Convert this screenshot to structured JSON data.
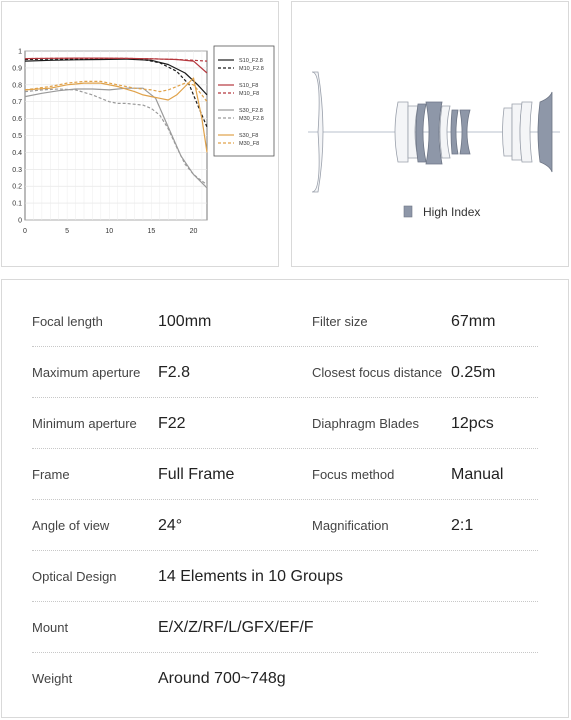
{
  "mtf_chart": {
    "chart_data": {
      "type": "line",
      "x_ticks": [
        "0",
        "5",
        "10",
        "15",
        "20"
      ],
      "y_ticks": [
        "0",
        "0.1",
        "0.2",
        "0.3",
        "0.4",
        "0.5",
        "0.6",
        "0.7",
        "0.8",
        "0.9",
        "1"
      ],
      "xlim": [
        0,
        21.6
      ],
      "ylim": [
        0,
        1
      ],
      "grid": true,
      "legend_position": "right",
      "series": [
        {
          "name": "S10_F2.8",
          "color": "#1a1a1a",
          "dash": false,
          "x": [
            0,
            3,
            6,
            9,
            12,
            15,
            17,
            19,
            20.5,
            21.6
          ],
          "y": [
            0.94,
            0.945,
            0.948,
            0.95,
            0.952,
            0.945,
            0.92,
            0.87,
            0.8,
            0.74
          ]
        },
        {
          "name": "M10_F2.8",
          "color": "#1a1a1a",
          "dash": true,
          "x": [
            0,
            3,
            6,
            9,
            12,
            14,
            16,
            18,
            19.5,
            20.5,
            21.6
          ],
          "y": [
            0.95,
            0.952,
            0.953,
            0.954,
            0.955,
            0.95,
            0.93,
            0.88,
            0.8,
            0.68,
            0.55
          ]
        },
        {
          "name": "S10_F8",
          "color": "#b5373d",
          "dash": false,
          "x": [
            0,
            3,
            6,
            9,
            12,
            15,
            18,
            20,
            21.6
          ],
          "y": [
            0.955,
            0.957,
            0.958,
            0.958,
            0.957,
            0.954,
            0.95,
            0.94,
            0.87
          ]
        },
        {
          "name": "M10_F8",
          "color": "#b5373d",
          "dash": true,
          "x": [
            0,
            3,
            6,
            9,
            12,
            15,
            18,
            20,
            21.6
          ],
          "y": [
            0.955,
            0.956,
            0.957,
            0.957,
            0.956,
            0.954,
            0.95,
            0.945,
            0.94
          ]
        },
        {
          "name": "S30_F2.8",
          "color": "#9a9a9a",
          "dash": false,
          "x": [
            0,
            2,
            4,
            6,
            8,
            10,
            12,
            14,
            15.5,
            17,
            18.5,
            20,
            21,
            21.6
          ],
          "y": [
            0.73,
            0.75,
            0.765,
            0.775,
            0.775,
            0.77,
            0.78,
            0.78,
            0.72,
            0.55,
            0.38,
            0.27,
            0.22,
            0.19
          ]
        },
        {
          "name": "M30_F2.8",
          "color": "#9a9a9a",
          "dash": true,
          "x": [
            0,
            2,
            4,
            6,
            8,
            9,
            10,
            11,
            12,
            14,
            15,
            16,
            17,
            18,
            19,
            20,
            21,
            21.6
          ],
          "y": [
            0.76,
            0.77,
            0.775,
            0.77,
            0.74,
            0.72,
            0.7,
            0.69,
            0.69,
            0.68,
            0.66,
            0.62,
            0.54,
            0.43,
            0.33,
            0.27,
            0.23,
            0.21
          ]
        },
        {
          "name": "S30_F8",
          "color": "#e0a24a",
          "dash": false,
          "x": [
            0,
            3,
            5,
            7,
            9,
            11,
            13,
            14,
            15,
            16,
            17,
            18,
            19,
            20,
            21,
            21.6
          ],
          "y": [
            0.77,
            0.78,
            0.8,
            0.81,
            0.81,
            0.79,
            0.76,
            0.74,
            0.73,
            0.72,
            0.71,
            0.74,
            0.79,
            0.84,
            0.6,
            0.4
          ]
        },
        {
          "name": "M30_F8",
          "color": "#e0a24a",
          "dash": true,
          "x": [
            0,
            3,
            5,
            7,
            9,
            11,
            13,
            15,
            16,
            17,
            18,
            19,
            20,
            21,
            21.6
          ],
          "y": [
            0.77,
            0.79,
            0.81,
            0.82,
            0.82,
            0.8,
            0.78,
            0.77,
            0.76,
            0.77,
            0.79,
            0.81,
            0.8,
            0.74,
            0.7
          ]
        }
      ]
    }
  },
  "lens_diagram": {
    "legend_label": "High Index",
    "high_index_color": "#8e97a8",
    "glass_color": "#f4f5f7"
  },
  "specs": {
    "rows": [
      {
        "l1": "Focal length",
        "v1": "100mm",
        "l2": "Filter size",
        "v2": "67mm"
      },
      {
        "l1": "Maximum aperture",
        "v1": "F2.8",
        "l2": "Closest focus distance",
        "v2": "0.25m"
      },
      {
        "l1": "Minimum aperture",
        "v1": "F22",
        "l2": "Diaphragm Blades",
        "v2": "12pcs"
      },
      {
        "l1": "Frame",
        "v1": "Full Frame",
        "l2": "Focus method",
        "v2": "Manual"
      },
      {
        "l1": "Angle of view",
        "v1": "24°",
        "l2": "Magnification",
        "v2": "2:1"
      },
      {
        "l1": "Optical Design",
        "v1": "14 Elements in 10 Groups"
      },
      {
        "l1": "Mount",
        "v1": "E/X/Z/RF/L/GFX/EF/F"
      },
      {
        "l1": "Weight",
        "v1": "Around 700~748g"
      }
    ]
  }
}
